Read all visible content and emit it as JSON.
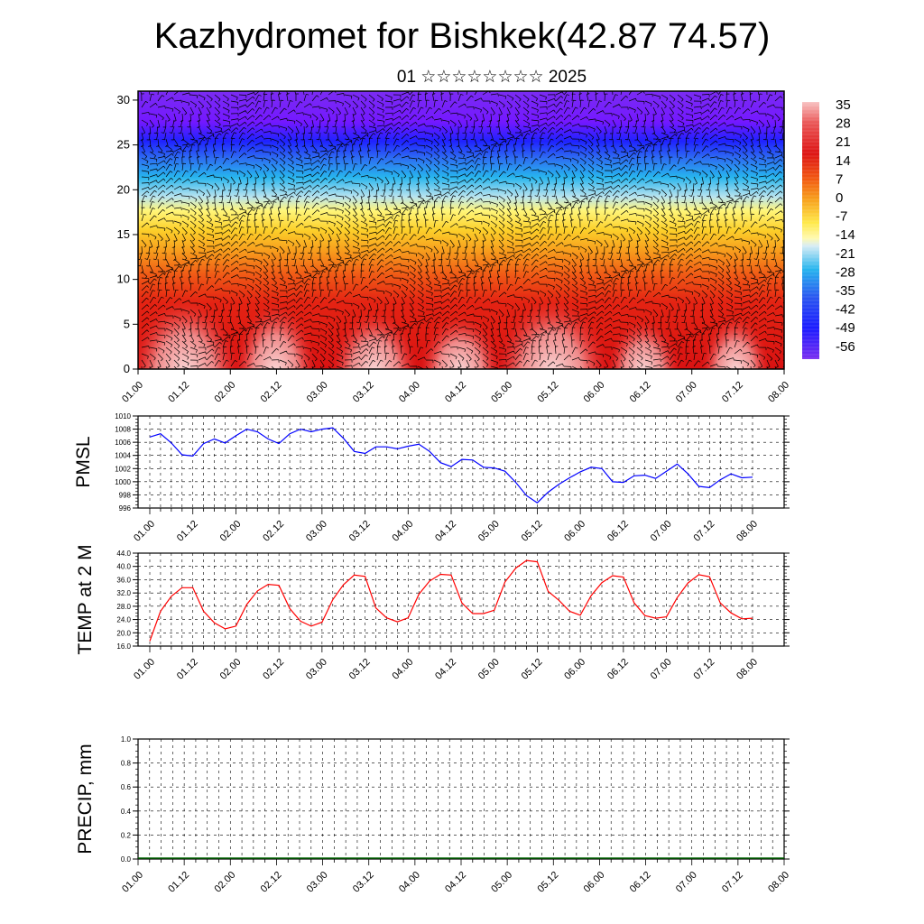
{
  "header": {
    "title": "Kazhydromet for Bishkek(42.87 74.57)",
    "subtitle": "01 ☆☆☆☆☆☆☆☆ 2025"
  },
  "chart_data": [
    {
      "type": "heatmap",
      "title": "",
      "xlabel": "",
      "ylabel": "",
      "x_ticks": [
        "01.00",
        "01.12",
        "02.00",
        "02.12",
        "03.00",
        "03.12",
        "04.00",
        "04.12",
        "05.00",
        "05.12",
        "06.00",
        "06.12",
        "07.00",
        "07.12",
        "08.00"
      ],
      "y_ticks": [
        0,
        5,
        10,
        15,
        20,
        25,
        30
      ],
      "ylim": [
        0,
        31
      ],
      "colorbar_labels": [
        "35",
        "28",
        "21",
        "14",
        "7",
        "0",
        "-7",
        "-14",
        "-21",
        "-28",
        "-35",
        "-42",
        "-49",
        "-56"
      ],
      "overlay": "wind barbs"
    },
    {
      "type": "line",
      "ylabel": "PMSL",
      "ylim": [
        996,
        1010
      ],
      "y_ticks": [
        "1010",
        "1008",
        "1006",
        "1004",
        "1002",
        "1000",
        "998",
        "996"
      ],
      "x_ticks": [
        "01.00",
        "01.12",
        "02.00",
        "02.12",
        "03.00",
        "03.12",
        "04.00",
        "04.12",
        "05.00",
        "05.12",
        "06.00",
        "06.12",
        "07.00",
        "07.12",
        "08.00"
      ],
      "series": [
        {
          "color": "#0000ff",
          "values": [
            1006.8,
            1007.3,
            1005.9,
            1004.1,
            1003.9,
            1005.8,
            1006.5,
            1005.9,
            1007.0,
            1008.0,
            1007.6,
            1006.5,
            1005.8,
            1007.3,
            1008.0,
            1007.6,
            1008.0,
            1008.2,
            1006.6,
            1004.6,
            1004.3,
            1005.3,
            1005.3,
            1005.0,
            1005.4,
            1005.7,
            1004.6,
            1002.9,
            1002.3,
            1003.4,
            1003.3,
            1002.2,
            1002.1,
            1001.6,
            999.9,
            997.9,
            996.8,
            998.4,
            999.6,
            1000.6,
            1001.5,
            1002.2,
            1002.0,
            1000.0,
            999.9,
            1000.9,
            1001.0,
            1000.5,
            1001.6,
            1002.7,
            1001.2,
            999.3,
            999.1,
            1000.3,
            1001.2,
            1000.6,
            1000.7
          ]
        }
      ]
    },
    {
      "type": "line",
      "ylabel": "TEMP at 2 M",
      "ylim": [
        16,
        44
      ],
      "y_ticks": [
        "44.0",
        "40.0",
        "36.0",
        "32.0",
        "28.0",
        "24.0",
        "20.0",
        "16.0"
      ],
      "x_ticks": [
        "01.00",
        "01.12",
        "02.00",
        "02.12",
        "03.00",
        "03.12",
        "04.00",
        "04.12",
        "05.00",
        "05.12",
        "06.00",
        "06.12",
        "07.00",
        "07.12",
        "08.00"
      ],
      "series": [
        {
          "color": "#ff0000",
          "values": [
            17.5,
            26.5,
            31.0,
            33.6,
            33.6,
            26.5,
            23.0,
            21.2,
            22.0,
            28.5,
            32.6,
            34.6,
            34.3,
            27.3,
            23.5,
            22.0,
            23.2,
            30.0,
            34.5,
            37.4,
            37.0,
            27.5,
            24.5,
            23.3,
            24.5,
            31.6,
            35.6,
            37.6,
            37.4,
            29.0,
            25.8,
            25.8,
            26.8,
            35.3,
            39.5,
            41.8,
            41.4,
            32.5,
            29.8,
            26.5,
            25.3,
            31.2,
            35.1,
            37.2,
            36.8,
            29.0,
            25.2,
            24.4,
            24.8,
            30.6,
            35.0,
            37.5,
            36.9,
            29.0,
            26.0,
            24.2,
            24.4
          ]
        }
      ]
    },
    {
      "type": "line",
      "ylabel": "PRECIP, mm",
      "ylim": [
        0,
        1
      ],
      "y_ticks": [
        "1.0",
        "0.8",
        "0.6",
        "0.4",
        "0.2",
        "0.0"
      ],
      "x_ticks": [
        "01.00",
        "01.12",
        "02.00",
        "02.12",
        "03.00",
        "03.12",
        "04.00",
        "04.12",
        "05.00",
        "05.12",
        "06.00",
        "06.12",
        "07.00",
        "07.12",
        "08.00"
      ],
      "series": [
        {
          "color": "#006400",
          "values": []
        }
      ]
    }
  ]
}
